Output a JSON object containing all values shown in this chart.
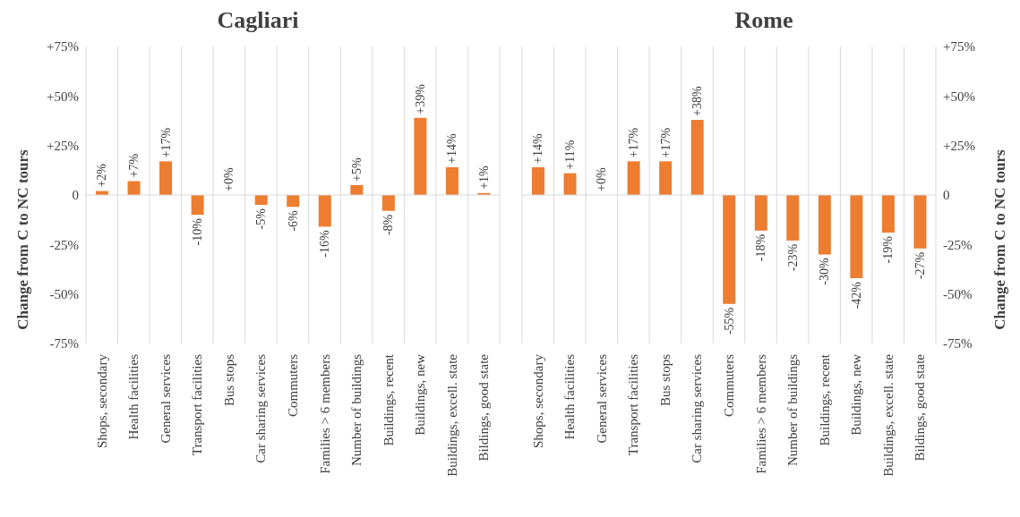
{
  "chart_data": [
    {
      "type": "bar",
      "title": "Cagliari",
      "ylabel": "Change from C to NC tours",
      "categories": [
        "Shops, secondary",
        "Health facilities",
        "General services",
        "Transport facilities",
        "Bus stops",
        "Car sharing services",
        "Commuters",
        "Families > 6 members",
        "Number of buildings",
        "Buildings, recent",
        "Buildings, new",
        "Buildings, excell. state",
        "Bildings, good state"
      ],
      "values": [
        2,
        7,
        17,
        -10,
        0,
        -5,
        -6,
        -16,
        5,
        -8,
        39,
        14,
        1
      ],
      "ref_lines": [
        {
          "axis": "y",
          "value": 0
        }
      ],
      "value_labels": [
        "+2%",
        "+7%",
        "+17%",
        "-10%",
        "+0%",
        "-5%",
        "-6%",
        "-16%",
        "+5%",
        "-8%",
        "+39%",
        "+14%",
        "+1%"
      ],
      "color": "#ed7d31",
      "ylim": [
        -75,
        75
      ],
      "yticks": [
        {
          "value": -75,
          "label": "-75%"
        },
        {
          "value": -50,
          "label": "-50%"
        },
        {
          "value": -25,
          "label": "-25%"
        },
        0,
        {
          "value": 25,
          "label": "+25%"
        },
        {
          "value": 50,
          "label": "+50%"
        },
        {
          "value": 75,
          "label": "+75%"
        }
      ],
      "grid": "x"
    },
    {
      "type": "bar",
      "title": "Rome",
      "ylabel": "Change from C to NC tours",
      "categories": [
        "Shops, secondary",
        "Health facilities",
        "General services",
        "Transport facilities",
        "Bus stops",
        "Car sharing services",
        "Commuters",
        "Families > 6 members",
        "Number of buildings",
        "Buildings, recent",
        "Buildings, new",
        "Buildings, excell. state",
        "Bildings, good state"
      ],
      "values": [
        14,
        11,
        0,
        17,
        17,
        38,
        -55,
        -18,
        -23,
        -30,
        -42,
        -19,
        -27
      ],
      "ref_lines": [
        {
          "axis": "y",
          "value": 0
        }
      ],
      "value_labels": [
        "+14%",
        "+11%",
        "+0%",
        "+17%",
        "+17%",
        "+38%",
        "-55%",
        "-18%",
        "-23%",
        "-30%",
        "-42%",
        "-19%",
        "-27%"
      ],
      "color": "#ed7d31",
      "ylim": [
        -75,
        75
      ],
      "yticks": [
        {
          "value": -75,
          "label": "-75%"
        },
        {
          "value": -50,
          "label": "-50%"
        },
        {
          "value": -25,
          "label": "-25%"
        },
        0,
        {
          "value": 25,
          "label": "+25%"
        },
        {
          "value": 50,
          "label": "+50%"
        },
        {
          "value": 75,
          "label": "+75%"
        }
      ],
      "grid": "x"
    }
  ]
}
